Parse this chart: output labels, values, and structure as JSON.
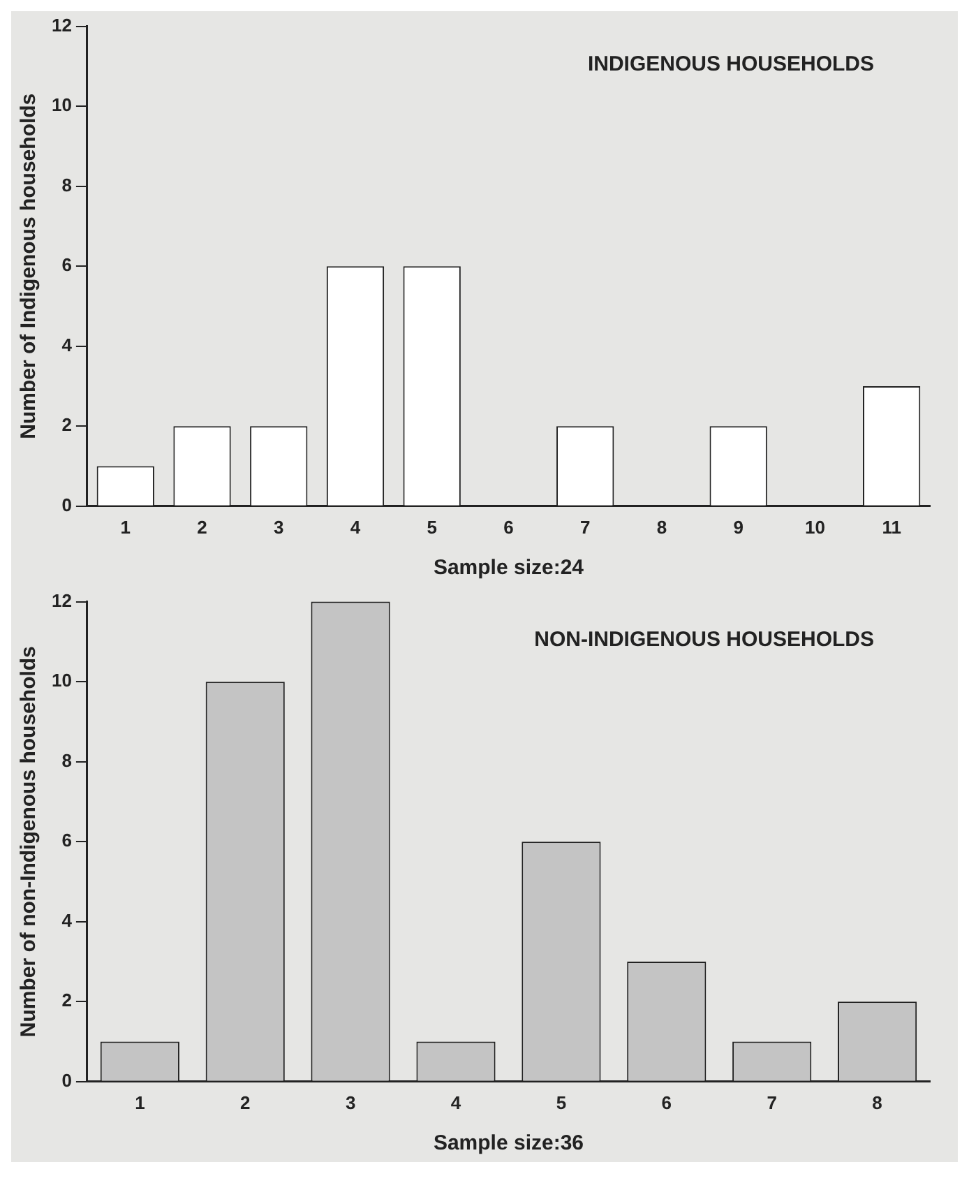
{
  "chart_data": [
    {
      "type": "bar",
      "title": "INDIGENOUS HOUSEHOLDS",
      "xlabel": "Sample size:24",
      "ylabel": "Number of Indigenous households",
      "categories": [
        "1",
        "2",
        "3",
        "4",
        "5",
        "6",
        "7",
        "8",
        "9",
        "10",
        "11"
      ],
      "values": [
        1,
        2,
        2,
        6,
        6,
        0,
        2,
        0,
        2,
        0,
        3
      ],
      "color": "#ffffff",
      "ylim": [
        0,
        12
      ],
      "yticks": [
        0,
        2,
        4,
        6,
        8,
        10,
        12
      ],
      "grid": false,
      "legend": false
    },
    {
      "type": "bar",
      "title": "NON-INDIGENOUS HOUSEHOLDS",
      "xlabel": "Sample size:36",
      "ylabel": "Number of non-Indigenous households",
      "categories": [
        "1",
        "2",
        "3",
        "4",
        "5",
        "6",
        "7",
        "8"
      ],
      "values": [
        1,
        10,
        12,
        1,
        6,
        3,
        1,
        2
      ],
      "color": "#c4c4c4",
      "ylim": [
        0,
        12
      ],
      "yticks": [
        0,
        2,
        4,
        6,
        8,
        10,
        12
      ],
      "grid": false,
      "legend": false
    }
  ]
}
